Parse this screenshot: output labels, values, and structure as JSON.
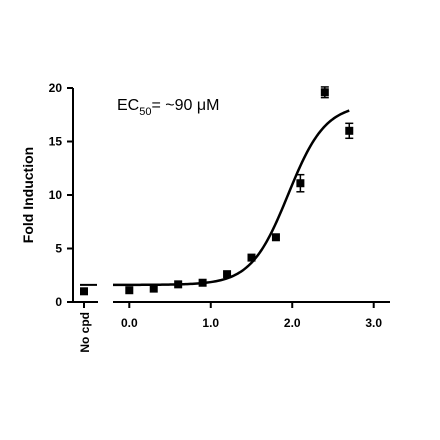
{
  "chart_data": {
    "type": "scatter",
    "title": "",
    "xlabel": "",
    "ylabel": "Fold Induction",
    "annotation": {
      "prefix": "EC",
      "subscript": "50",
      "suffix": "= ~90 μM"
    },
    "control": {
      "label": "No cpd",
      "value": 1.0,
      "error": 0.2
    },
    "xlim": [
      -0.2,
      3.2
    ],
    "ylim": [
      0,
      20
    ],
    "xticks": [
      0.0,
      1.0,
      2.0,
      3.0
    ],
    "xtick_labels": [
      "0.0",
      "1.0",
      "2.0",
      "3.0"
    ],
    "yticks": [
      0,
      5,
      10,
      15,
      20
    ],
    "ytick_labels": [
      "0",
      "5",
      "10",
      "15",
      "20"
    ],
    "series": [
      {
        "points": [
          {
            "x": 0.0,
            "y": 1.1,
            "err": 0.0
          },
          {
            "x": 0.3,
            "y": 1.25,
            "err": 0.0
          },
          {
            "x": 0.6,
            "y": 1.65,
            "err": 0.0
          },
          {
            "x": 0.9,
            "y": 1.8,
            "err": 0.0
          },
          {
            "x": 1.2,
            "y": 2.6,
            "err": 0.0
          },
          {
            "x": 1.5,
            "y": 4.15,
            "err": 0.0
          },
          {
            "x": 1.8,
            "y": 6.05,
            "err": 0.0
          },
          {
            "x": 2.1,
            "y": 11.1,
            "err": 0.8
          },
          {
            "x": 2.4,
            "y": 19.6,
            "err": 0.5
          },
          {
            "x": 2.7,
            "y": 16.0,
            "err": 0.7
          }
        ],
        "fit": {
          "model": "sigmoidal",
          "bottom": 1.6,
          "top": 18.5,
          "log_ec50": 1.95,
          "hill": 1.9,
          "x_range": [
            -0.2,
            2.7
          ]
        },
        "control_fit_line": {
          "y": 1.6
        }
      }
    ]
  }
}
